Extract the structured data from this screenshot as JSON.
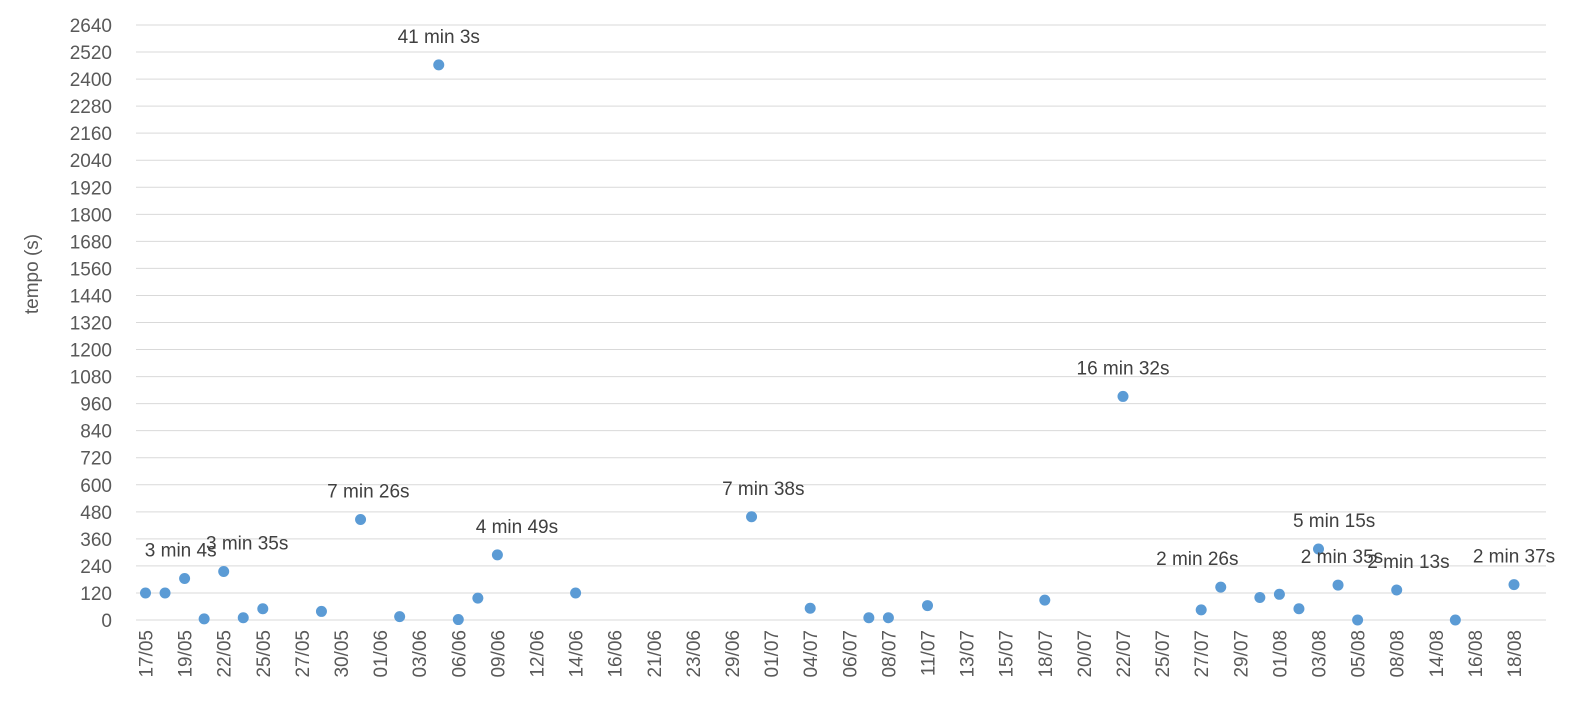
{
  "chart_data": {
    "type": "scatter",
    "title": "",
    "xlabel": "",
    "ylabel": "tempo (s)",
    "ylim": [
      0,
      2640
    ],
    "ytick_step": 120,
    "grid": true,
    "legend": "none",
    "colors": {
      "series": "#5b9bd5",
      "grid": "#d9d9d9"
    },
    "categories": [
      "17/05",
      "19/05",
      "22/05",
      "25/05",
      "27/05",
      "30/05",
      "01/06",
      "03/06",
      "06/06",
      "09/06",
      "12/06",
      "14/06",
      "16/06",
      "21/06",
      "23/06",
      "29/06",
      "01/07",
      "04/07",
      "06/07",
      "08/07",
      "11/07",
      "13/07",
      "15/07",
      "18/07",
      "20/07",
      "22/07",
      "25/07",
      "27/07",
      "29/07",
      "01/08",
      "03/08",
      "05/08",
      "08/08",
      "14/08",
      "16/08",
      "18/08"
    ],
    "points": [
      {
        "x": 0,
        "y": 120
      },
      {
        "x": 0.5,
        "y": 120
      },
      {
        "x": 1,
        "y": 184
      },
      {
        "x": 1.5,
        "y": 5
      },
      {
        "x": 2,
        "y": 215
      },
      {
        "x": 2.5,
        "y": 10
      },
      {
        "x": 3,
        "y": 50
      },
      {
        "x": 4.5,
        "y": 38
      },
      {
        "x": 5.5,
        "y": 446
      },
      {
        "x": 6.5,
        "y": 15
      },
      {
        "x": 7.5,
        "y": 2463
      },
      {
        "x": 8,
        "y": 2
      },
      {
        "x": 8.5,
        "y": 97
      },
      {
        "x": 9,
        "y": 289
      },
      {
        "x": 11,
        "y": 120
      },
      {
        "x": 15.5,
        "y": 458
      },
      {
        "x": 17,
        "y": 52
      },
      {
        "x": 18.5,
        "y": 10
      },
      {
        "x": 19,
        "y": 10
      },
      {
        "x": 20,
        "y": 64
      },
      {
        "x": 23,
        "y": 88
      },
      {
        "x": 25,
        "y": 992
      },
      {
        "x": 27,
        "y": 45
      },
      {
        "x": 27.5,
        "y": 146
      },
      {
        "x": 28.5,
        "y": 100
      },
      {
        "x": 29,
        "y": 114
      },
      {
        "x": 29.5,
        "y": 50
      },
      {
        "x": 30,
        "y": 315
      },
      {
        "x": 30.5,
        "y": 155
      },
      {
        "x": 31,
        "y": 0
      },
      {
        "x": 32,
        "y": 133
      },
      {
        "x": 33.5,
        "y": 0
      },
      {
        "x": 35,
        "y": 157
      }
    ],
    "annotations": [
      {
        "x": 0.9,
        "y": 184,
        "text": "3 min 4s"
      },
      {
        "x": 2.6,
        "y": 215,
        "text": "3 min 35s"
      },
      {
        "x": 5.7,
        "y": 446,
        "text": "7 min 26s"
      },
      {
        "x": 7.5,
        "y": 2463,
        "text": "41 min 3s"
      },
      {
        "x": 9.5,
        "y": 289,
        "text": "4 min 49s"
      },
      {
        "x": 15.8,
        "y": 458,
        "text": "7 min 38s"
      },
      {
        "x": 25,
        "y": 992,
        "text": "16 min 32s"
      },
      {
        "x": 26.9,
        "y": 146,
        "text": "2 min 26s"
      },
      {
        "x": 30.4,
        "y": 315,
        "text": "5 min 15s"
      },
      {
        "x": 30.6,
        "y": 155,
        "text": "2 min 35s"
      },
      {
        "x": 32.3,
        "y": 133,
        "text": "2 min 13s"
      },
      {
        "x": 35,
        "y": 157,
        "text": "2 min 37s"
      }
    ]
  }
}
